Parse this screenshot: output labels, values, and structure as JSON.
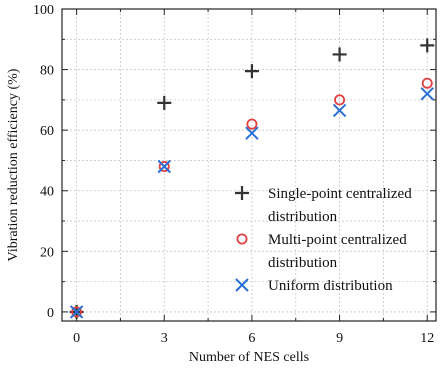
{
  "chart_data": {
    "type": "scatter",
    "xlabel": "Number of NES cells",
    "ylabel": "Vibration reduction efficiency (%)",
    "xlim": [
      -0.5,
      12.3
    ],
    "ylim": [
      -3,
      100
    ],
    "x_ticks": [
      0,
      3,
      6,
      9,
      12
    ],
    "y_ticks": [
      0,
      20,
      40,
      60,
      80,
      100
    ],
    "grid": true,
    "legend_position": "lower-right",
    "series": [
      {
        "name": "Single-point centralized distribution",
        "legend_lines": [
          "Single-point centralized",
          "distribution"
        ],
        "marker": "plus",
        "color": "#333333",
        "x": [
          0,
          3,
          6,
          9,
          12
        ],
        "y": [
          0,
          69,
          79.5,
          85,
          88
        ]
      },
      {
        "name": "Multi-point centralized distribution",
        "legend_lines": [
          "Multi-point centralized",
          "distribution"
        ],
        "marker": "circle",
        "color": "#e04040",
        "x": [
          0,
          3,
          6,
          9,
          12
        ],
        "y": [
          0,
          48,
          62,
          70,
          75.5
        ]
      },
      {
        "name": "Uniform distribution",
        "legend_lines": [
          "Uniform distribution"
        ],
        "marker": "x",
        "color": "#2a6fd6",
        "x": [
          0,
          3,
          6,
          9,
          12
        ],
        "y": [
          0,
          48,
          59,
          66.5,
          72
        ]
      }
    ]
  }
}
